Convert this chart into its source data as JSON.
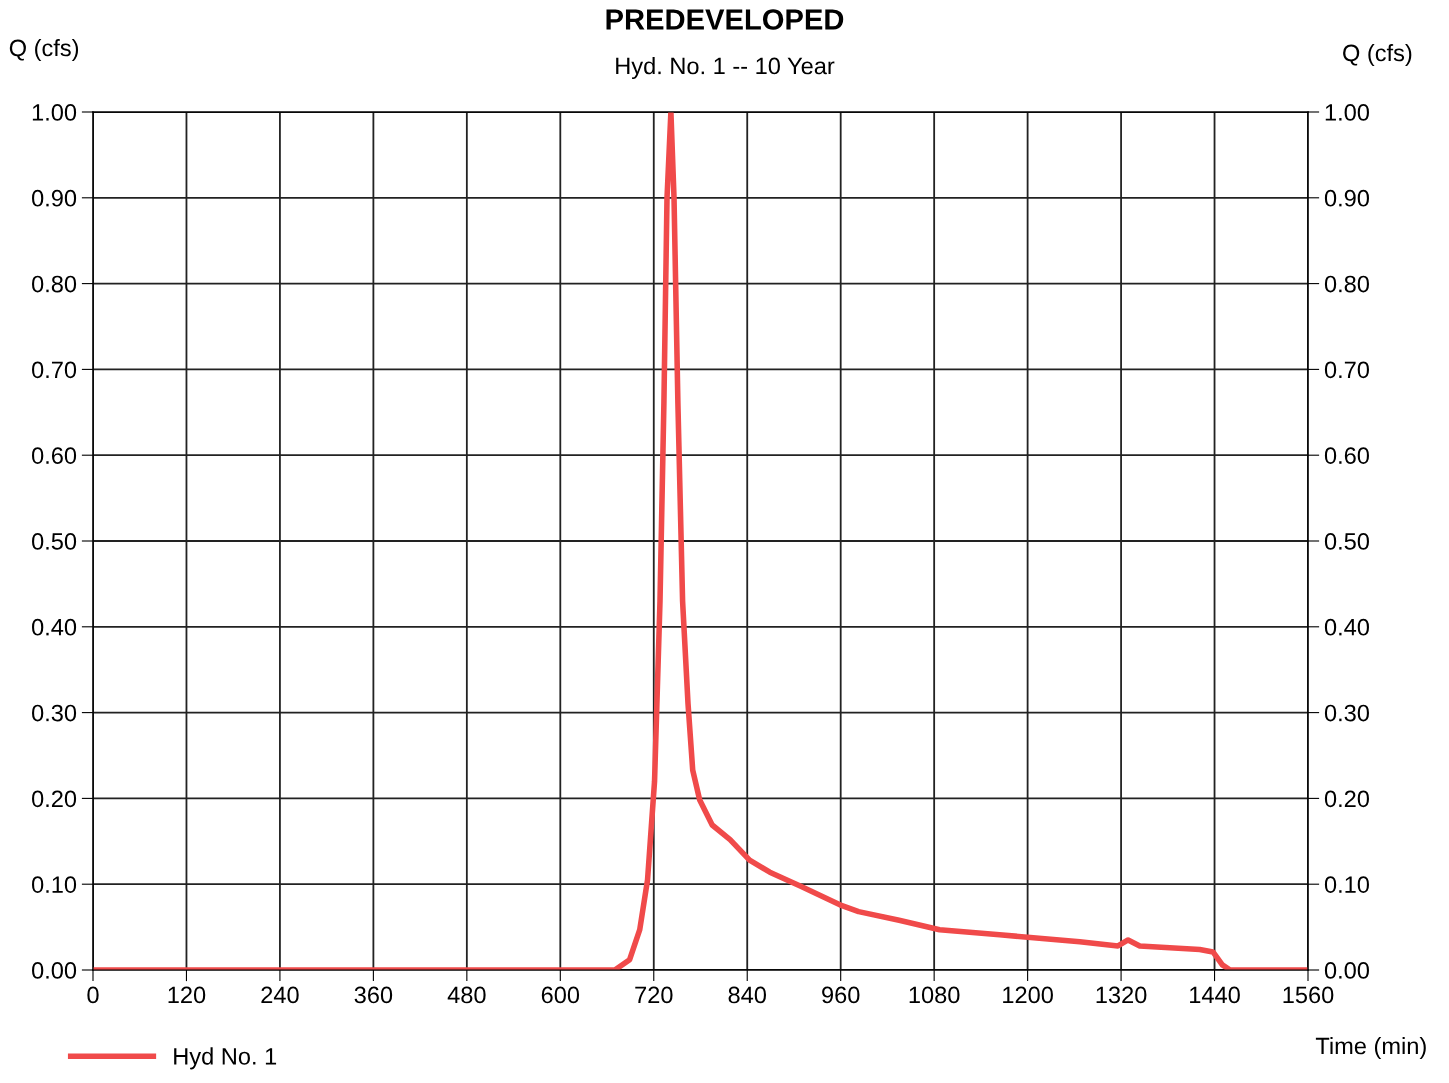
{
  "chart_data": {
    "type": "line",
    "title": "PREDEVELOPED",
    "subtitle": "Hyd. No. 1 -- 10 Year",
    "xlabel": "Time (min)",
    "ylabel": "Q (cfs)",
    "y2label": "Q (cfs)",
    "x": [
      0,
      670,
      689,
      702,
      712,
      721,
      728,
      733,
      737,
      742,
      746,
      751,
      757,
      764,
      770,
      779,
      795,
      818,
      843,
      869,
      908,
      959,
      983,
      1035,
      1087,
      1164,
      1267,
      1316,
      1329,
      1344,
      1421,
      1438,
      1450,
      1460,
      1556
    ],
    "series": [
      {
        "name": "Hyd No. 1",
        "color": "#f04a4a",
        "values": [
          0,
          0,
          0.012,
          0.047,
          0.105,
          0.22,
          0.43,
          0.66,
          0.9,
          1.0,
          0.9,
          0.66,
          0.43,
          0.31,
          0.233,
          0.198,
          0.169,
          0.152,
          0.128,
          0.114,
          0.098,
          0.076,
          0.068,
          0.058,
          0.047,
          0.041,
          0.033,
          0.028,
          0.035,
          0.028,
          0.024,
          0.021,
          0.006,
          0,
          0
        ]
      }
    ],
    "xlim": [
      0,
      1560
    ],
    "xticks": [
      0,
      120,
      240,
      360,
      480,
      600,
      720,
      840,
      960,
      1080,
      1200,
      1320,
      1440,
      1560
    ],
    "ylim": [
      0,
      1.0
    ],
    "yticks": [
      {
        "value": 0,
        "label": "0.00"
      },
      {
        "value": 0.1,
        "label": "0.10"
      },
      {
        "value": 0.2,
        "label": "0.20"
      },
      {
        "value": 0.3,
        "label": "0.30"
      },
      {
        "value": 0.4,
        "label": "0.40"
      },
      {
        "value": 0.5,
        "label": "0.50"
      },
      {
        "value": 0.6,
        "label": "0.60"
      },
      {
        "value": 0.7,
        "label": "0.70"
      },
      {
        "value": 0.8,
        "label": "0.80"
      },
      {
        "value": 0.9,
        "label": "0.90"
      },
      {
        "value": 1.0,
        "label": "1.00"
      }
    ],
    "y2lim": [
      0,
      1.0
    ],
    "y2ticks": [
      {
        "value": 0,
        "label": "0.00"
      },
      {
        "value": 0.1,
        "label": "0.10"
      },
      {
        "value": 0.2,
        "label": "0.20"
      },
      {
        "value": 0.3,
        "label": "0.30"
      },
      {
        "value": 0.4,
        "label": "0.40"
      },
      {
        "value": 0.5,
        "label": "0.50"
      },
      {
        "value": 0.6,
        "label": "0.60"
      },
      {
        "value": 0.7,
        "label": "0.70"
      },
      {
        "value": 0.8,
        "label": "0.80"
      },
      {
        "value": 0.9,
        "label": "0.90"
      },
      {
        "value": 1.0,
        "label": "1.00"
      }
    ],
    "grid": true,
    "legend": "bottom left",
    "line_style": "solid",
    "marker": "none"
  }
}
